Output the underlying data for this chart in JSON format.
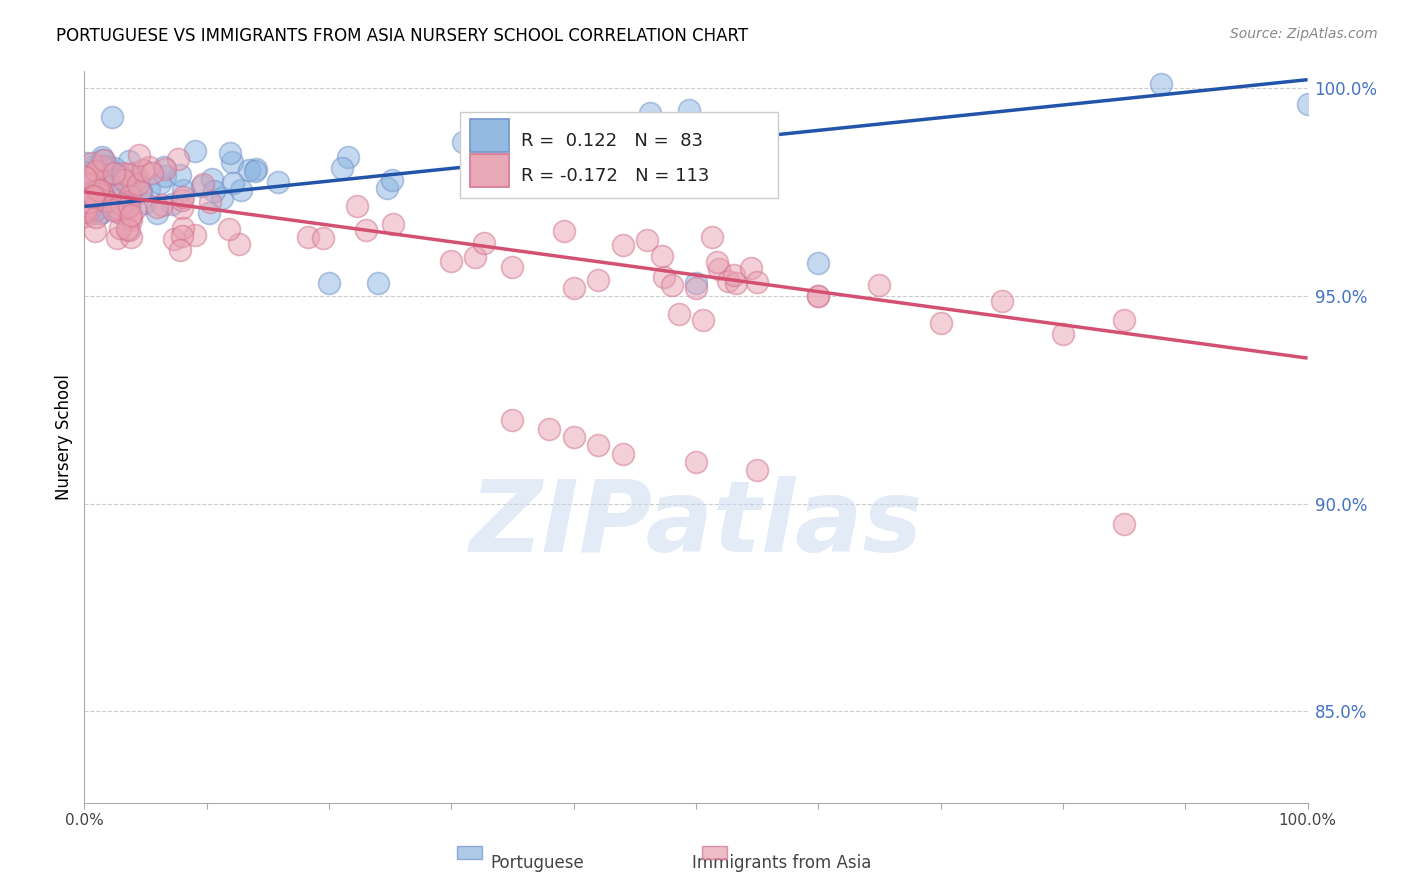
{
  "title": "PORTUGUESE VS IMMIGRANTS FROM ASIA NURSERY SCHOOL CORRELATION CHART",
  "source": "Source: ZipAtlas.com",
  "ylabel": "Nursery School",
  "x_min": 0.0,
  "x_max": 1.0,
  "y_min": 0.828,
  "y_max": 1.004,
  "right_ytick_vals": [
    0.85,
    0.9,
    0.95,
    1.0
  ],
  "right_yticklabels": [
    "85.0%",
    "90.0%",
    "95.0%",
    "100.0%"
  ],
  "portuguese_color": "#8ab4e0",
  "asia_color": "#e8a0b0",
  "portuguese_edge": "#7090c8",
  "asia_edge": "#d07090",
  "trend_blue_color": "#2255aa",
  "trend_pink_color": "#d45070",
  "watermark_text": "ZIPatlas",
  "watermark_color": "#c8d8f0",
  "legend_label1": "Portuguese",
  "legend_label2": "Immigrants from Asia",
  "portuguese_R": "0.122",
  "portuguese_N": "83",
  "asia_R": "-0.172",
  "asia_N": "113",
  "blue_line_y0": 0.9715,
  "blue_line_y1": 1.002,
  "pink_line_y0": 0.975,
  "pink_line_y1": 0.935,
  "seed": 42
}
